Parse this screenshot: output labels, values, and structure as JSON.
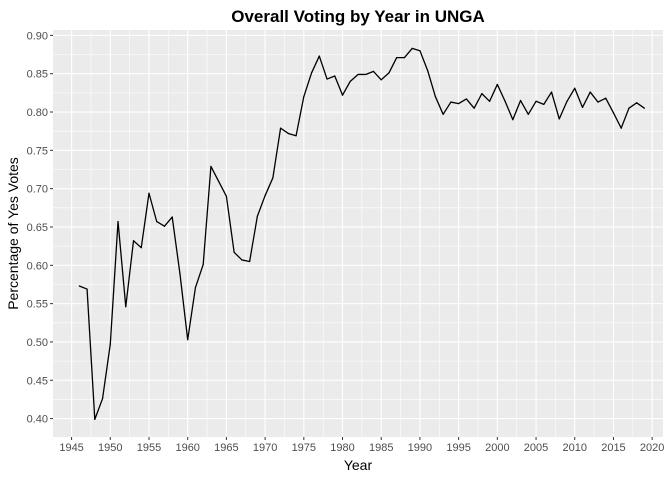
{
  "chart_data": {
    "type": "line",
    "title": "Overall Voting by Year in UNGA",
    "xlabel": "Year",
    "ylabel": "Percentage of Yes Votes",
    "xlim": [
      1942.6,
      2021.4
    ],
    "ylim": [
      0.376,
      0.907
    ],
    "x_ticks": [
      1945,
      1950,
      1955,
      1960,
      1965,
      1970,
      1975,
      1980,
      1985,
      1990,
      1995,
      2000,
      2005,
      2010,
      2015,
      2020
    ],
    "y_ticks": [
      0.4,
      0.45,
      0.5,
      0.55,
      0.6,
      0.65,
      0.7,
      0.75,
      0.8,
      0.85,
      0.9
    ],
    "y_tick_labels": [
      "0.40",
      "0.45",
      "0.50",
      "0.55",
      "0.60",
      "0.65",
      "0.70",
      "0.75",
      "0.80",
      "0.85",
      "0.90"
    ],
    "grid": true,
    "colors": {
      "panel": "#ebebeb",
      "grid_major": "#ffffff",
      "line": "#000000"
    },
    "series": [
      {
        "x": [
          1946,
          1947,
          1948,
          1949,
          1950,
          1951,
          1952,
          1953,
          1954,
          1955,
          1956,
          1957,
          1958,
          1959,
          1960,
          1961,
          1962,
          1963,
          1965,
          1966,
          1967,
          1968,
          1969,
          1970,
          1971,
          1972,
          1973,
          1974,
          1975,
          1976,
          1977,
          1978,
          1979,
          1980,
          1981,
          1982,
          1983,
          1984,
          1985,
          1986,
          1987,
          1988,
          1989,
          1990,
          1991,
          1992,
          1993,
          1994,
          1995,
          1996,
          1997,
          1998,
          1999,
          2000,
          2001,
          2002,
          2003,
          2004,
          2005,
          2006,
          2007,
          2008,
          2009,
          2010,
          2011,
          2012,
          2013,
          2014,
          2015,
          2016,
          2017,
          2018,
          2019
        ],
        "y": [
          0.573,
          0.569,
          0.399,
          0.426,
          0.497,
          0.657,
          0.546,
          0.632,
          0.623,
          0.694,
          0.657,
          0.651,
          0.663,
          0.589,
          0.503,
          0.571,
          0.601,
          0.729,
          0.69,
          0.617,
          0.607,
          0.605,
          0.664,
          0.691,
          0.714,
          0.779,
          0.772,
          0.769,
          0.82,
          0.851,
          0.873,
          0.843,
          0.847,
          0.822,
          0.84,
          0.849,
          0.849,
          0.853,
          0.842,
          0.851,
          0.871,
          0.871,
          0.883,
          0.88,
          0.854,
          0.82,
          0.797,
          0.813,
          0.811,
          0.817,
          0.805,
          0.824,
          0.814,
          0.836,
          0.814,
          0.79,
          0.815,
          0.797,
          0.814,
          0.81,
          0.826,
          0.791,
          0.814,
          0.831,
          0.806,
          0.826,
          0.813,
          0.818,
          0.799,
          0.779,
          0.805,
          0.812,
          0.805
        ]
      }
    ]
  }
}
